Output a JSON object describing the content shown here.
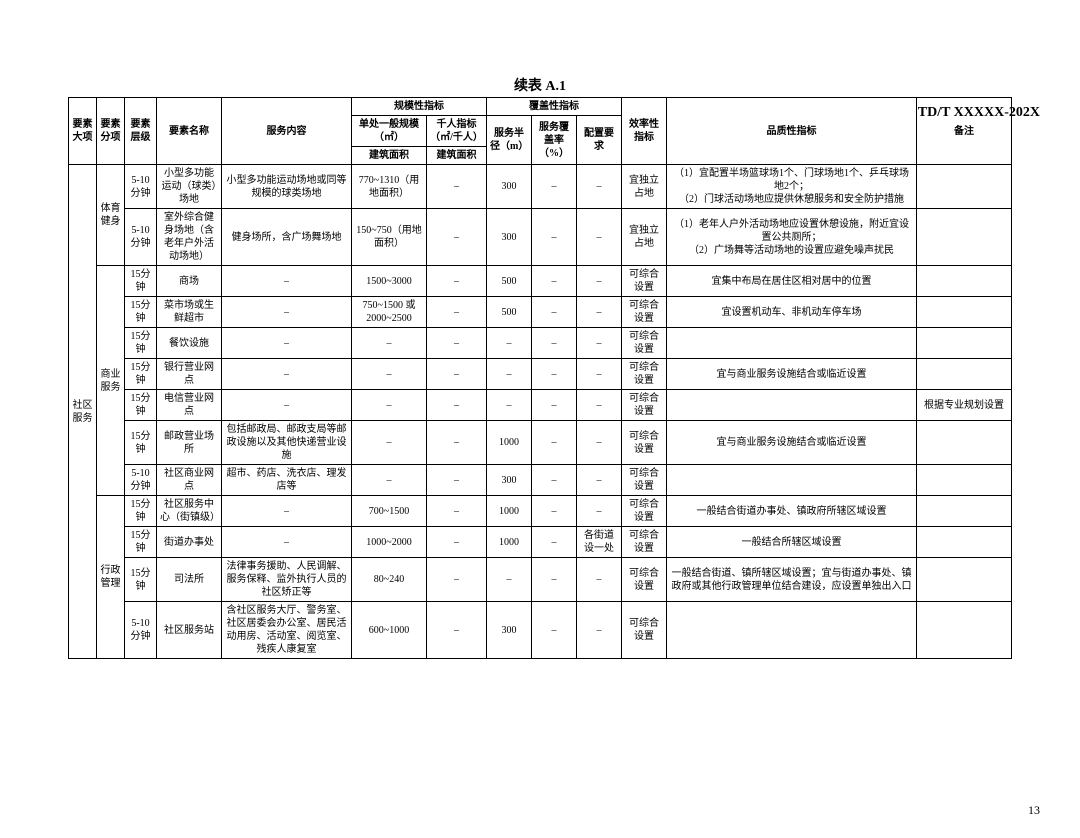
{
  "doc_code": "TD/T   XXXXX-202X",
  "page_number": "13",
  "table_title": "续表 A.1",
  "headers": {
    "c1": "要素大项",
    "c2": "要素分项",
    "c3": "要素层级",
    "c4": "要素名称",
    "c5": "服务内容",
    "g1": "规模性指标",
    "g1a": "单处一般规模（㎡）",
    "g1b": "千人指标（㎡/千人）",
    "g1a2": "建筑面积",
    "g1b2": "建筑面积",
    "g2": "覆盖性指标",
    "g2a": "服务半径（m）",
    "g2b": "服务覆盖率（%）",
    "g2c": "配置要求",
    "c_eff": "效率性指标",
    "c_qual": "品质性指标",
    "c_note": "备注"
  },
  "col_widths": {
    "c1": 28,
    "c2": 28,
    "c3": 32,
    "c4": 65,
    "c5": 130,
    "g1a": 75,
    "g1b": 60,
    "g2a": 45,
    "g2b": 45,
    "g2c": 45,
    "eff": 45,
    "qual": 250,
    "note": 95
  },
  "big1": "社区服务",
  "sec_sport": "体育健身",
  "sec_biz": "商业服务",
  "sec_admin": "行政管理",
  "rows": [
    {
      "lv": "5-10分钟",
      "name": "小型多功能运动（球类）场地",
      "svc": "小型多功能运动场地或同等规模的球类场地",
      "scale": "770~1310（用地面积）",
      "tp": "–",
      "rad": "300",
      "cov": "–",
      "cfg": "–",
      "eff": "宜独立占地",
      "qual": "（1）宜配置半场篮球场1个、门球场地1个、乒乓球场地2个；\n（2）门球活动场地应提供休憩服务和安全防护措施",
      "note": ""
    },
    {
      "lv": "5-10分钟",
      "name": "室外综合健身场地（含老年户外活动场地）",
      "svc": "健身场所，含广场舞场地",
      "scale": "150~750（用地面积）",
      "tp": "–",
      "rad": "300",
      "cov": "–",
      "cfg": "–",
      "eff": "宜独立占地",
      "qual": "（1）老年人户外活动场地应设置休憩设施，附近宜设置公共厕所；\n（2）广场舞等活动场地的设置应避免噪声扰民",
      "note": ""
    },
    {
      "lv": "15分钟",
      "name": "商场",
      "svc": "–",
      "scale": "1500~3000",
      "tp": "–",
      "rad": "500",
      "cov": "–",
      "cfg": "–",
      "eff": "可综合设置",
      "qual": "宜集中布局在居住区相对居中的位置",
      "note": ""
    },
    {
      "lv": "15分钟",
      "name": "菜市场或生鲜超市",
      "svc": "–",
      "scale": "750~1500 或 2000~2500",
      "tp": "–",
      "rad": "500",
      "cov": "–",
      "cfg": "–",
      "eff": "可综合设置",
      "qual": "宜设置机动车、非机动车停车场",
      "note": ""
    },
    {
      "lv": "15分钟",
      "name": "餐饮设施",
      "svc": "–",
      "scale": "–",
      "tp": "–",
      "rad": "–",
      "cov": "–",
      "cfg": "–",
      "eff": "可综合设置",
      "qual": "",
      "note": ""
    },
    {
      "lv": "15分钟",
      "name": "银行营业网点",
      "svc": "–",
      "scale": "–",
      "tp": "–",
      "rad": "–",
      "cov": "–",
      "cfg": "–",
      "eff": "可综合设置",
      "qual": "宜与商业服务设施结合或临近设置",
      "note": ""
    },
    {
      "lv": "15分钟",
      "name": "电信营业网点",
      "svc": "–",
      "scale": "–",
      "tp": "–",
      "rad": "–",
      "cov": "–",
      "cfg": "–",
      "eff": "可综合设置",
      "qual": "",
      "note": "根据专业规划设置"
    },
    {
      "lv": "15分钟",
      "name": "邮政营业场所",
      "svc": "包括邮政局、邮政支局等邮政设施以及其他快递营业设施",
      "scale": "–",
      "tp": "–",
      "rad": "1000",
      "cov": "–",
      "cfg": "–",
      "eff": "可综合设置",
      "qual": "宜与商业服务设施结合或临近设置",
      "note": ""
    },
    {
      "lv": "5-10分钟",
      "name": "社区商业网点",
      "svc": "超市、药店、洗衣店、理发店等",
      "scale": "–",
      "tp": "–",
      "rad": "300",
      "cov": "–",
      "cfg": "–",
      "eff": "可综合设置",
      "qual": "",
      "note": ""
    },
    {
      "lv": "15分钟",
      "name": "社区服务中心（街镇级）",
      "svc": "–",
      "scale": "700~1500",
      "tp": "–",
      "rad": "1000",
      "cov": "–",
      "cfg": "–",
      "eff": "可综合设置",
      "qual": "一般结合街道办事处、镇政府所辖区域设置",
      "note": ""
    },
    {
      "lv": "15分钟",
      "name": "街道办事处",
      "svc": "–",
      "scale": "1000~2000",
      "tp": "–",
      "rad": "1000",
      "cov": "–",
      "cfg": "各街道设一处",
      "eff": "可综合设置",
      "qual": "一般结合所辖区域设置",
      "note": ""
    },
    {
      "lv": "15分钟",
      "name": "司法所",
      "svc": "法律事务援助、人民调解、服务保释、监外执行人员的社区矫正等",
      "scale": "80~240",
      "tp": "–",
      "rad": "–",
      "cov": "–",
      "cfg": "–",
      "eff": "可综合设置",
      "qual": "一般结合街道、镇所辖区域设置；宜与街道办事处、镇政府或其他行政管理单位结合建设，应设置单独出入口",
      "note": ""
    },
    {
      "lv": "5-10分钟",
      "name": "社区服务站",
      "svc": "含社区服务大厅、警务室、社区居委会办公室、居民活动用房、活动室、阅览室、残疾人康复室",
      "scale": "600~1000",
      "tp": "–",
      "rad": "300",
      "cov": "–",
      "cfg": "–",
      "eff": "可综合设置",
      "qual": "",
      "note": ""
    }
  ]
}
